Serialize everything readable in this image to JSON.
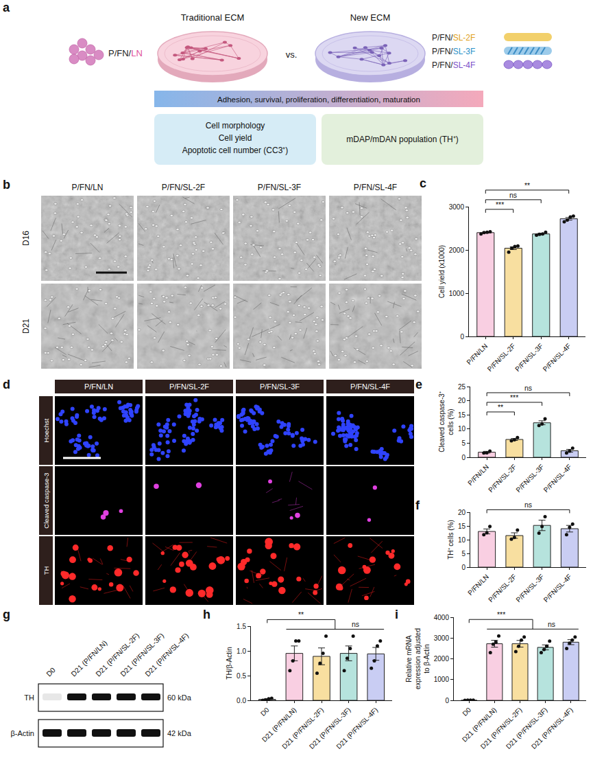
{
  "figure": {
    "a": {
      "letter": "a",
      "left_title": "Traditional ECM",
      "right_title": "New ECM",
      "vs": "vs.",
      "left_label": [
        {
          "text": "P/FN/",
          "color": "#1a1a1a"
        },
        {
          "text": "LN",
          "color": "#e0529c"
        }
      ],
      "right_labels": [
        [
          {
            "text": "P/FN/",
            "color": "#1a1a1a"
          },
          {
            "text": "SL-2F",
            "color": "#e0a020"
          }
        ],
        [
          {
            "text": "P/FN/",
            "color": "#1a1a1a"
          },
          {
            "text": "SL-3F",
            "color": "#2a90c8"
          }
        ],
        [
          {
            "text": "P/FN/",
            "color": "#1a1a1a"
          },
          {
            "text": "SL-4F",
            "color": "#7a4fc8"
          }
        ]
      ],
      "banner": "Adhesion, survival, proliferation, differentiation, maturation",
      "box1": [
        "Cell morphology",
        "Cell yield",
        "Apoptotic cell number (CC3⁺)"
      ],
      "box2": [
        "mDAP/mDAN population (TH⁺)"
      ]
    },
    "b": {
      "letter": "b",
      "columns": [
        "P/FN/LN",
        "P/FN/SL-2F",
        "P/FN/SL-3F",
        "P/FN/SL-4F"
      ],
      "rows": [
        "D16",
        "D21"
      ]
    },
    "d": {
      "letter": "d",
      "columns": [
        "P/FN/LN",
        "P/FN/SL-2F",
        "P/FN/SL-3F",
        "P/FN/SL-4F"
      ],
      "rows": [
        "Hoechst",
        "Cleaved caspase-3",
        "TH"
      ]
    },
    "g": {
      "letter": "g",
      "lanes": [
        "D0",
        "D21 (P/FN/LN)",
        "D21 (P/FN/SL-2F)",
        "D21 (P/FN/SL-3F)",
        "D21 (P/FN/SL-4F)"
      ],
      "blots": [
        {
          "name": "TH",
          "size": "60 kDa",
          "intensities": [
            0.1,
            1,
            1,
            1,
            1
          ]
        },
        {
          "name": "β-Actin",
          "size": "42 kDa",
          "intensities": [
            1,
            1,
            1,
            1,
            1
          ]
        }
      ]
    }
  },
  "chart_data": [
    {
      "panel": "c",
      "type": "bar",
      "ylabel": "Cell yield (x1000)",
      "categories": [
        "P/FN/LN",
        "P/FN/SL-2F",
        "P/FN/SL-3F",
        "P/FN/SL-4F"
      ],
      "values": [
        2400,
        2040,
        2370,
        2720
      ],
      "errors": [
        12,
        32,
        15,
        31
      ],
      "points": [
        [
          2370,
          2400,
          2410,
          2420
        ],
        [
          1950,
          2040,
          2080,
          2090
        ],
        [
          2340,
          2360,
          2370,
          2410
        ],
        [
          2650,
          2690,
          2760,
          2780
        ]
      ],
      "colors": [
        "#f9cfe2",
        "#f8dfa0",
        "#b6e3dd",
        "#c9cdf3"
      ],
      "marker": "circle",
      "ylim": [
        0,
        3000
      ],
      "yticks": [
        0,
        1000,
        2000,
        3000
      ],
      "grid": false,
      "comparisons": [
        {
          "from": 0,
          "to": 1,
          "label": "***"
        },
        {
          "from": 0,
          "to": 2,
          "label": "ns"
        },
        {
          "from": 0,
          "to": 3,
          "label": "**"
        }
      ]
    },
    {
      "panel": "e",
      "type": "bar",
      "ylabel": "Cleaved caspase-3⁺ cells (%)",
      "categories": [
        "P/FN/LN",
        "P/FN/SL-2F",
        "P/FN/SL-3F",
        "P/FN/SL-4F"
      ],
      "values": [
        1.8,
        6.3,
        12.2,
        2.3
      ],
      "errors": [
        0.3,
        0.35,
        0.7,
        0.5
      ],
      "points": [
        [
          1.5,
          1.6,
          2.2
        ],
        [
          5.8,
          6.2,
          7.0
        ],
        [
          11.2,
          11.8,
          13.6
        ],
        [
          1.5,
          2.2,
          3.2
        ]
      ],
      "colors": [
        "#f9cfe2",
        "#f8dfa0",
        "#b6e3dd",
        "#c9cdf3"
      ],
      "marker": "circle",
      "ylim": [
        0,
        25
      ],
      "yticks": [
        0,
        5,
        10,
        15,
        20,
        25
      ],
      "grid": false,
      "comparisons": [
        {
          "from": 0,
          "to": 1,
          "label": "**"
        },
        {
          "from": 0,
          "to": 2,
          "label": "***"
        },
        {
          "from": 0,
          "to": 3,
          "label": "ns"
        }
      ]
    },
    {
      "panel": "f",
      "type": "bar",
      "ylabel": "TH⁺ cells (%)",
      "categories": [
        "P/FN/LN",
        "P/FN/SL-2F",
        "P/FN/SL-3F",
        "P/FN/SL-4F"
      ],
      "values": [
        13,
        11.5,
        15.2,
        14
      ],
      "errors": [
        0.9,
        1,
        1.9,
        1.2
      ],
      "points": [
        [
          11.8,
          12.5,
          14.8
        ],
        [
          10.2,
          10.8,
          13.5
        ],
        [
          12.4,
          14.8,
          18.4
        ],
        [
          11.8,
          14.5,
          15.7
        ]
      ],
      "colors": [
        "#f9cfe2",
        "#f8dfa0",
        "#b6e3dd",
        "#c9cdf3"
      ],
      "marker": "circle",
      "ylim": [
        0,
        20
      ],
      "yticks": [
        0,
        5,
        10,
        15,
        20
      ],
      "grid": false,
      "comparisons": [
        {
          "from": 0,
          "to": 3,
          "label": "ns"
        }
      ]
    },
    {
      "panel": "h",
      "type": "bar",
      "ylabel": "TH/β-Actin",
      "categories": [
        "D0",
        "D21 (P/FN/LN)",
        "D21 (P/FN/SL-2F)",
        "D21 (P/FN/SL-3F)",
        "D21 (P/FN/SL-4F)"
      ],
      "values": [
        0.02,
        0.95,
        0.89,
        0.95,
        0.94
      ],
      "errors": [
        0.01,
        0.15,
        0.17,
        0.15,
        0.13
      ],
      "points": [
        [
          0.0,
          0.01,
          0.03,
          0.04
        ],
        [
          0.6,
          0.8,
          1.2,
          1.2
        ],
        [
          0.55,
          0.75,
          0.95,
          1.3
        ],
        [
          0.6,
          0.85,
          1.05,
          1.3
        ],
        [
          0.65,
          0.8,
          1.1,
          1.2
        ]
      ],
      "colors": [
        "#ffffff",
        "#f9cfe2",
        "#f8dfa0",
        "#b6e3dd",
        "#c9cdf3"
      ],
      "marker": "circle",
      "ylim": [
        0,
        1.5
      ],
      "yticks": [
        {
          "value": 0,
          "label": "0.0"
        },
        {
          "value": 0.5,
          "label": "0.5"
        },
        {
          "value": 1,
          "label": "1.0"
        },
        {
          "value": 1.5,
          "label": "1.5"
        }
      ],
      "grid": false,
      "comparisons": [
        {
          "span": [
            1,
            4
          ],
          "label": "ns"
        },
        {
          "from": 0,
          "to": [
            1,
            4
          ],
          "label": "**"
        }
      ]
    },
    {
      "panel": "i",
      "type": "bar",
      "ylabel": "Relative mRNA expression adjusted to β-Actin",
      "categories": [
        "D0",
        "D21 (P/FN/LN)",
        "D21 (P/FN/SL-2F)",
        "D21 (P/FN/SL-3F)",
        "D21 (P/FN/SL-4F)"
      ],
      "values": [
        5,
        2725,
        2725,
        2550,
        2800
      ],
      "errors": [
        1,
        165,
        160,
        120,
        120
      ],
      "points": [
        [
          2,
          5,
          5,
          8
        ],
        [
          2300,
          2700,
          2800,
          3100
        ],
        [
          2350,
          2600,
          2900,
          3050
        ],
        [
          2300,
          2450,
          2600,
          2850
        ],
        [
          2500,
          2750,
          2900,
          3050
        ]
      ],
      "colors": [
        "#ffffff",
        "#f9cfe2",
        "#f8dfa0",
        "#b6e3dd",
        "#c9cdf3"
      ],
      "marker": "circle",
      "ylim": [
        0,
        4000
      ],
      "yticks": [
        0,
        1000,
        2000,
        3000,
        4000
      ],
      "grid": false,
      "comparisons": [
        {
          "span": [
            1,
            4
          ],
          "label": "ns"
        },
        {
          "from": 0,
          "to": [
            1,
            4
          ],
          "label": "***"
        }
      ]
    }
  ]
}
